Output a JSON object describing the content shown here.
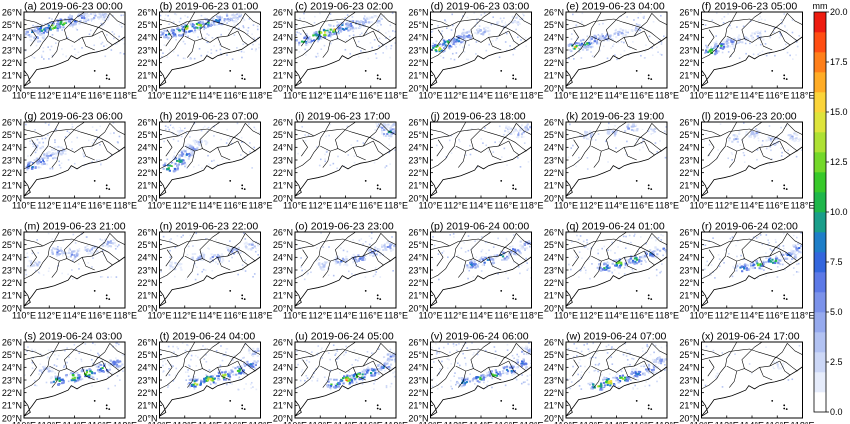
{
  "chart_data": {
    "type": "heatmap",
    "panel_titles": [
      "(a) 2019-06-23 00:00",
      "(b) 2019-06-23 01:00",
      "(c) 2019-06-23 02:00",
      "(d) 2019-06-23 03:00",
      "(e) 2019-06-23 04:00",
      "(f) 2019-06-23 05:00",
      "(g) 2019-06-23 06:00",
      "(h) 2019-06-23 07:00",
      "(i) 2019-06-23 17:00",
      "(j) 2019-06-23 18:00",
      "(k) 2019-06-23 19:00",
      "(l) 2019-06-23 20:00",
      "(m) 2019-06-23 21:00",
      "(n) 2019-06-23 22:00",
      "(o) 2019-06-23 23:00",
      "(p) 2019-06-24 00:00",
      "(q) 2019-06-24 01:00",
      "(r) 2019-06-24 02:00",
      "(s) 2019-06-24 03:00",
      "(t) 2019-06-24 04:00",
      "(u) 2019-06-24 05:00",
      "(v) 2019-06-24 06:00",
      "(w) 2019-06-24 07:00",
      "(x) 2019-06-24 17:00"
    ],
    "x_ticks": [
      "110°E",
      "112°E",
      "114°E",
      "116°E",
      "118°E"
    ],
    "y_ticks": [
      "26°N",
      "25°N",
      "24°N",
      "23°N",
      "22°N",
      "21°N",
      "20°N"
    ],
    "xlim": [
      110,
      118
    ],
    "ylim": [
      20,
      26
    ],
    "colorbar": {
      "unit": "mm",
      "range": [
        0,
        20
      ],
      "tick_labels": [
        "20.0",
        "17.5",
        "15.0",
        "12.5",
        "10.0",
        "7.5",
        "5.0",
        "2.5",
        "0.0"
      ],
      "colors": [
        "#ffffff",
        "#e6ecfb",
        "#ccd7f6",
        "#b2c2f2",
        "#96aaee",
        "#7b92ea",
        "#5c79e6",
        "#3366dd",
        "#1e7ec8",
        "#1a9e8a",
        "#1fb74b",
        "#38c92a",
        "#74d82a",
        "#aee134",
        "#dee43c",
        "#fbd43a",
        "#ffac26",
        "#ff7f1a",
        "#ff4d12",
        "#ee1c10"
      ]
    },
    "panels": [
      {
        "label": "a",
        "intensity": 0.7,
        "cells": [
          [
            110.6,
            24.4,
            9
          ],
          [
            111.4,
            24.7,
            12
          ],
          [
            112.2,
            24.9,
            16
          ],
          [
            113.0,
            25.2,
            14
          ],
          [
            113.8,
            25.4,
            10
          ],
          [
            114.6,
            25.6,
            8
          ],
          [
            115.4,
            25.7,
            5
          ],
          [
            116.2,
            25.8,
            4
          ],
          [
            111.0,
            24.0,
            6
          ]
        ]
      },
      {
        "label": "b",
        "intensity": 0.8,
        "cells": [
          [
            110.6,
            24.3,
            10
          ],
          [
            111.4,
            24.5,
            15
          ],
          [
            112.2,
            24.8,
            18
          ],
          [
            113.0,
            25.0,
            16
          ],
          [
            113.8,
            25.2,
            12
          ],
          [
            114.6,
            25.4,
            10
          ],
          [
            115.4,
            25.6,
            6
          ],
          [
            116.2,
            25.7,
            4
          ]
        ]
      },
      {
        "label": "c",
        "intensity": 0.8,
        "cells": [
          [
            110.6,
            23.8,
            12
          ],
          [
            111.4,
            24.1,
            16
          ],
          [
            112.2,
            24.4,
            19
          ],
          [
            113.0,
            24.7,
            17
          ],
          [
            113.8,
            24.9,
            13
          ],
          [
            114.6,
            25.1,
            10
          ],
          [
            115.4,
            25.3,
            6
          ],
          [
            116.5,
            25.5,
            4
          ]
        ]
      },
      {
        "label": "d",
        "intensity": 0.6,
        "cells": [
          [
            110.5,
            23.2,
            18
          ],
          [
            111.3,
            23.6,
            14
          ],
          [
            112.1,
            23.9,
            10
          ],
          [
            112.9,
            24.2,
            7
          ],
          [
            114.0,
            24.5,
            5
          ],
          [
            115.5,
            25.0,
            4
          ],
          [
            116.8,
            25.4,
            3
          ]
        ]
      },
      {
        "label": "e",
        "intensity": 0.6,
        "cells": [
          [
            110.7,
            23.3,
            16
          ],
          [
            111.5,
            23.6,
            12
          ],
          [
            112.3,
            23.9,
            9
          ],
          [
            113.1,
            24.1,
            7
          ],
          [
            114.2,
            24.4,
            5
          ],
          [
            115.5,
            24.8,
            4
          ]
        ]
      },
      {
        "label": "f",
        "intensity": 0.5,
        "cells": [
          [
            110.7,
            23.0,
            14
          ],
          [
            111.5,
            23.4,
            10
          ],
          [
            112.3,
            23.7,
            7
          ],
          [
            113.2,
            23.9,
            5
          ],
          [
            114.3,
            24.2,
            4
          ]
        ]
      },
      {
        "label": "g",
        "intensity": 0.5,
        "cells": [
          [
            110.5,
            22.6,
            10
          ],
          [
            111.3,
            23.0,
            8
          ],
          [
            112.0,
            23.4,
            6
          ],
          [
            112.7,
            23.8,
            5
          ],
          [
            111.0,
            24.2,
            4
          ]
        ]
      },
      {
        "label": "h",
        "intensity": 0.5,
        "cells": [
          [
            110.8,
            22.5,
            16
          ],
          [
            111.5,
            23.0,
            12
          ],
          [
            112.0,
            23.5,
            9
          ],
          [
            112.6,
            24.0,
            6
          ],
          [
            113.1,
            24.5,
            4
          ],
          [
            111.3,
            25.4,
            3
          ]
        ]
      },
      {
        "label": "i",
        "intensity": 0.3,
        "cells": [
          [
            117.4,
            25.3,
            10
          ],
          [
            116.8,
            25.6,
            5
          ],
          [
            117.8,
            25.8,
            4
          ]
        ]
      },
      {
        "label": "j",
        "intensity": 0.3,
        "cells": [
          [
            117.0,
            25.2,
            6
          ],
          [
            117.6,
            25.6,
            5
          ],
          [
            116.2,
            25.4,
            3
          ]
        ]
      },
      {
        "label": "k",
        "intensity": 0.3,
        "cells": [
          [
            111.6,
            25.0,
            4
          ],
          [
            113.6,
            25.3,
            5
          ],
          [
            115.0,
            25.6,
            6
          ],
          [
            116.6,
            25.4,
            3
          ]
        ]
      },
      {
        "label": "l",
        "intensity": 0.3,
        "cells": [
          [
            112.6,
            24.8,
            4
          ],
          [
            114.0,
            25.2,
            5
          ],
          [
            115.6,
            24.6,
            5
          ],
          [
            117.2,
            24.9,
            4
          ]
        ]
      },
      {
        "label": "m",
        "intensity": 0.4,
        "cells": [
          [
            112.6,
            24.5,
            7
          ],
          [
            113.8,
            24.3,
            6
          ],
          [
            115.2,
            24.7,
            5
          ],
          [
            116.6,
            25.2,
            5
          ],
          [
            110.8,
            23.6,
            4
          ]
        ]
      },
      {
        "label": "n",
        "intensity": 0.4,
        "cells": [
          [
            113.0,
            24.1,
            6
          ],
          [
            114.4,
            24.0,
            7
          ],
          [
            115.8,
            24.6,
            6
          ],
          [
            117.2,
            25.0,
            5
          ],
          [
            111.2,
            23.4,
            3
          ]
        ]
      },
      {
        "label": "o",
        "intensity": 0.4,
        "cells": [
          [
            113.6,
            23.8,
            7
          ],
          [
            115.0,
            24.0,
            8
          ],
          [
            116.2,
            24.5,
            7
          ],
          [
            117.4,
            24.9,
            6
          ],
          [
            112.2,
            23.4,
            4
          ]
        ]
      },
      {
        "label": "p",
        "intensity": 0.5,
        "cells": [
          [
            113.2,
            23.5,
            9
          ],
          [
            114.4,
            23.8,
            11
          ],
          [
            115.6,
            24.2,
            10
          ],
          [
            116.6,
            24.6,
            8
          ],
          [
            117.6,
            25.1,
            7
          ]
        ]
      },
      {
        "label": "q",
        "intensity": 0.6,
        "cells": [
          [
            113.0,
            23.3,
            12
          ],
          [
            114.2,
            23.6,
            15
          ],
          [
            115.4,
            23.9,
            12
          ],
          [
            116.6,
            24.3,
            9
          ],
          [
            117.6,
            24.8,
            8
          ]
        ]
      },
      {
        "label": "r",
        "intensity": 0.6,
        "cells": [
          [
            113.2,
            23.2,
            11
          ],
          [
            114.4,
            23.5,
            14
          ],
          [
            115.6,
            23.8,
            13
          ],
          [
            116.8,
            24.2,
            9
          ],
          [
            117.6,
            24.8,
            8
          ]
        ]
      },
      {
        "label": "s",
        "intensity": 0.7,
        "cells": [
          [
            112.6,
            23.0,
            14
          ],
          [
            113.8,
            23.3,
            17
          ],
          [
            115.0,
            23.6,
            16
          ],
          [
            116.2,
            24.0,
            12
          ],
          [
            117.2,
            24.4,
            9
          ],
          [
            111.6,
            23.8,
            5
          ]
        ]
      },
      {
        "label": "t",
        "intensity": 0.8,
        "cells": [
          [
            112.8,
            22.8,
            16
          ],
          [
            113.9,
            23.1,
            18
          ],
          [
            115.0,
            23.4,
            17
          ],
          [
            116.2,
            23.8,
            13
          ],
          [
            117.2,
            24.3,
            9
          ],
          [
            117.6,
            25.3,
            5
          ]
        ]
      },
      {
        "label": "u",
        "intensity": 0.7,
        "cells": [
          [
            113.0,
            22.8,
            15
          ],
          [
            114.0,
            23.1,
            18
          ],
          [
            115.0,
            23.4,
            16
          ],
          [
            116.0,
            23.7,
            12
          ],
          [
            117.0,
            24.1,
            9
          ],
          [
            117.5,
            24.9,
            6
          ]
        ]
      },
      {
        "label": "v",
        "intensity": 0.8,
        "cells": [
          [
            112.6,
            22.9,
            10
          ],
          [
            113.8,
            23.2,
            12
          ],
          [
            115.0,
            23.5,
            13
          ],
          [
            116.2,
            23.9,
            11
          ],
          [
            117.2,
            24.4,
            9
          ],
          [
            117.5,
            25.4,
            6
          ]
        ]
      },
      {
        "label": "w",
        "intensity": 0.8,
        "cells": [
          [
            112.4,
            22.6,
            16
          ],
          [
            113.4,
            22.9,
            18
          ],
          [
            114.4,
            23.2,
            14
          ],
          [
            115.6,
            23.6,
            10
          ],
          [
            116.6,
            24.0,
            8
          ],
          [
            117.4,
            24.6,
            6
          ]
        ]
      },
      {
        "label": "x",
        "intensity": 0.1,
        "cells": [
          [
            111.2,
            23.6,
            2
          ],
          [
            116.0,
            24.2,
            2
          ]
        ]
      }
    ]
  }
}
